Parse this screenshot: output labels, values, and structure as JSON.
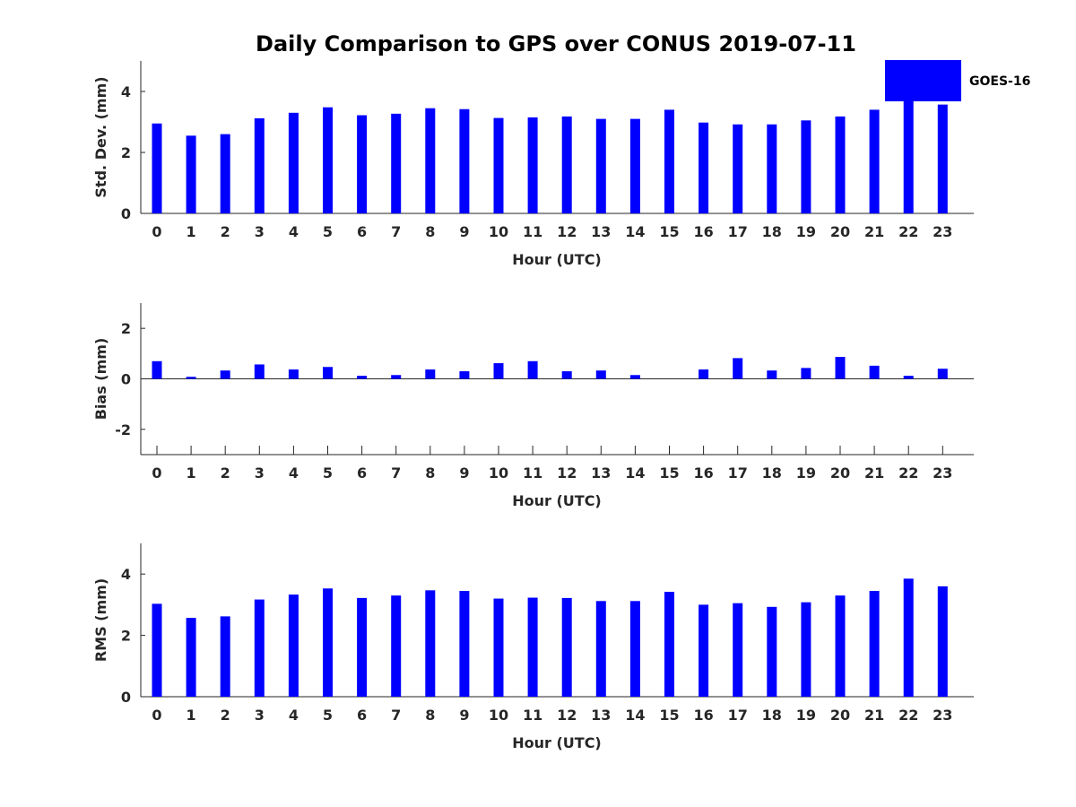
{
  "chart_data": {
    "title": "Daily Comparison to GPS over CONUS 2019-07-11",
    "type": "bar",
    "bar_color": "#0000ff",
    "legend": {
      "label": "GOES-16",
      "placement": "top-right"
    },
    "categories": [
      "0",
      "1",
      "2",
      "3",
      "4",
      "5",
      "6",
      "7",
      "8",
      "9",
      "10",
      "11",
      "12",
      "13",
      "14",
      "15",
      "16",
      "17",
      "18",
      "19",
      "20",
      "21",
      "22",
      "23"
    ],
    "panels": [
      {
        "name": "std-dev",
        "xlabel": "Hour (UTC)",
        "ylabel": "Std. Dev. (mm)",
        "ylim": [
          0,
          5
        ],
        "yticks": [
          "0",
          "2",
          "4"
        ],
        "ytick_values": [
          0,
          2,
          4
        ],
        "show_x_ticks": false,
        "series": [
          {
            "name": "GOES-16",
            "values": [
              2.95,
              2.55,
              2.6,
              3.12,
              3.3,
              3.48,
              3.22,
              3.27,
              3.45,
              3.42,
              3.13,
              3.15,
              3.18,
              3.1,
              3.1,
              3.4,
              2.98,
              2.92,
              2.92,
              3.05,
              3.18,
              3.4,
              3.78,
              3.57
            ]
          }
        ]
      },
      {
        "name": "bias",
        "xlabel": "Hour (UTC)",
        "ylabel": "Bias (mm)",
        "ylim": [
          -3,
          3
        ],
        "yticks": [
          "-2",
          "0",
          "2"
        ],
        "ytick_values": [
          -2,
          0,
          2
        ],
        "show_x_ticks": true,
        "series": [
          {
            "name": "GOES-16",
            "values": [
              0.7,
              0.08,
              0.33,
              0.57,
              0.37,
              0.47,
              0.12,
              0.15,
              0.37,
              0.3,
              0.62,
              0.7,
              0.3,
              0.33,
              0.15,
              0.0,
              0.37,
              0.82,
              0.33,
              0.43,
              0.87,
              0.52,
              0.12,
              0.4
            ]
          }
        ]
      },
      {
        "name": "rms",
        "xlabel": "Hour (UTC)",
        "ylabel": "RMS (mm)",
        "ylim": [
          0,
          5
        ],
        "yticks": [
          "0",
          "2",
          "4"
        ],
        "ytick_values": [
          0,
          2,
          4
        ],
        "show_x_ticks": false,
        "series": [
          {
            "name": "GOES-16",
            "values": [
              3.03,
              2.57,
              2.62,
              3.17,
              3.33,
              3.53,
              3.22,
              3.3,
              3.47,
              3.45,
              3.2,
              3.23,
              3.22,
              3.12,
              3.12,
              3.42,
              3.0,
              3.05,
              2.93,
              3.08,
              3.3,
              3.45,
              3.85,
              3.6
            ]
          }
        ]
      }
    ]
  }
}
